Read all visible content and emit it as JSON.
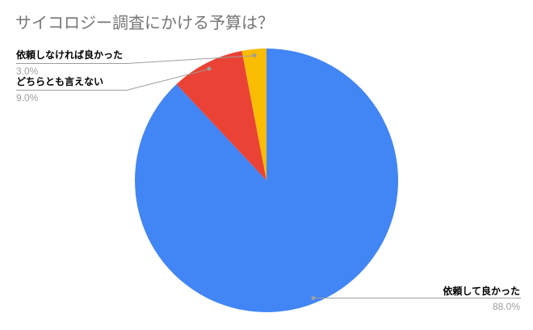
{
  "title": "サイコロジー調査にかける予算は？",
  "chart_data": {
    "type": "pie",
    "title": "サイコロジー調査にかける予算は？",
    "categories": [
      "依頼して良かった",
      "どちらとも言えない",
      "依頼しなければ良かった"
    ],
    "values": [
      88.0,
      9.0,
      3.0
    ],
    "value_unit": "percent",
    "slice_labels": [
      "88.0%",
      "9.0%",
      "3.0%"
    ],
    "colors": [
      "#4285F4",
      "#EA4335",
      "#FBBC04"
    ],
    "start_angle_deg": 0,
    "direction": "clockwise",
    "legend_position": "callout-labels",
    "grid": false
  },
  "callouts": [
    {
      "name": "依頼しなければ良かった",
      "percent": "3.0%"
    },
    {
      "name": "どちらとも言えない",
      "percent": "9.0%"
    },
    {
      "name": "依頼して良かった",
      "percent": "88.0%"
    }
  ],
  "style": {
    "background": "#ffffff",
    "title_color": "#757575",
    "label_color": "#000000",
    "percent_color": "#9e9e9e",
    "leader_color": "#9e9e9e"
  }
}
